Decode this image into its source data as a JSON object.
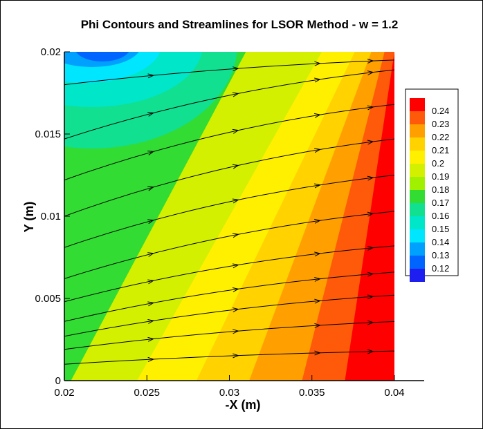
{
  "chart_data": {
    "type": "heatmap",
    "title": "Phi Contours and Streamlines for LSOR Method - w = 1.2",
    "xlabel": "-X (m)",
    "ylabel": "Y (m)",
    "xlim": [
      0.02,
      0.04
    ],
    "ylim": [
      0,
      0.02
    ],
    "x_ticks": [
      "0.02",
      "0.025",
      "0.03",
      "0.035",
      "0.04"
    ],
    "y_ticks": [
      "0",
      "0.005",
      "0.01",
      "0.015",
      "0.02"
    ],
    "grid": false,
    "legend_position": "right",
    "contour_levels": [
      "0.24",
      "0.23",
      "0.22",
      "0.21",
      "0.2",
      "0.19",
      "0.18",
      "0.17",
      "0.16",
      "0.15",
      "0.14",
      "0.13",
      "0.12"
    ],
    "contour_colors": [
      "#ff0000",
      "#ff5a0a",
      "#ffa000",
      "#ffd200",
      "#fff000",
      "#d2f000",
      "#a0f000",
      "#32dc32",
      "#10e090",
      "#00e6c8",
      "#00e6ff",
      "#00a0ff",
      "#0064ff",
      "#1e1ef0"
    ],
    "streamlines": [
      {
        "start_y": 0.001,
        "end_y": 0.0018
      },
      {
        "start_y": 0.0019,
        "end_y": 0.0036
      },
      {
        "start_y": 0.0027,
        "end_y": 0.0052
      },
      {
        "start_y": 0.0036,
        "end_y": 0.0066
      },
      {
        "start_y": 0.0048,
        "end_y": 0.0082
      },
      {
        "start_y": 0.0062,
        "end_y": 0.0103
      },
      {
        "start_y": 0.0081,
        "end_y": 0.0125
      },
      {
        "start_y": 0.01,
        "end_y": 0.0147
      },
      {
        "start_y": 0.0122,
        "end_y": 0.0168
      },
      {
        "start_y": 0.0147,
        "end_y": 0.0189
      },
      {
        "start_y": 0.018,
        "end_y": 0.0195
      }
    ]
  }
}
